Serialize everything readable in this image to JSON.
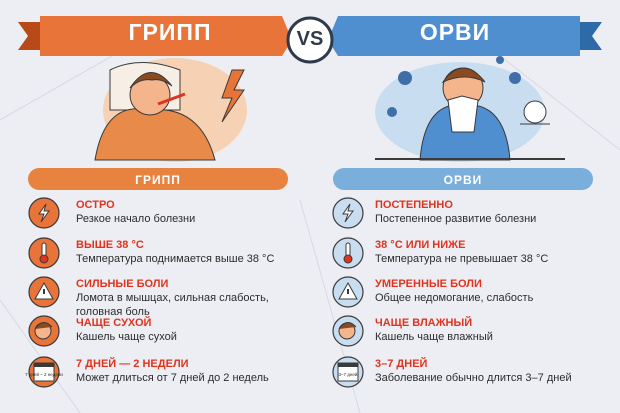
{
  "header": {
    "left": "ГРИПП",
    "vs": "VS",
    "right": "ОРВИ"
  },
  "columns": [
    {
      "title": "ГРИПП",
      "items": [
        {
          "title": "ОСТРО",
          "text": "Резкое начало болезни"
        },
        {
          "title": "ВЫШЕ 38 °С",
          "text": "Температура поднимается выше 38 °С"
        },
        {
          "title": "СИЛЬНЫЕ БОЛИ",
          "text": "Ломота в мышцах, сильная слабость, головная боль"
        },
        {
          "title": "ЧАЩЕ СУХОЙ",
          "text": "Кашель чаще сухой"
        },
        {
          "title": "7 ДНЕЙ — 2 НЕДЕЛИ",
          "text": "Может длиться от 7 дней до 2 недель",
          "icon_label": "7 дней – 2 недели"
        }
      ]
    },
    {
      "title": "ОРВИ",
      "items": [
        {
          "title": "ПОСТЕПЕННО",
          "text": "Постепенное развитие болезни"
        },
        {
          "title": "38 °С ИЛИ НИЖЕ",
          "text": "Температура не превышает 38 °С"
        },
        {
          "title": "УМЕРЕННЫЕ БОЛИ",
          "text": "Общее недомогание, слабость"
        },
        {
          "title": "ЧАЩЕ ВЛАЖНЫЙ",
          "text": "Кашель чаще влажный"
        },
        {
          "title": "3–7 ДНЕЙ",
          "text": "Заболевание обычно длится 3–7 дней",
          "icon_label": "3–7 дней"
        }
      ]
    }
  ]
}
